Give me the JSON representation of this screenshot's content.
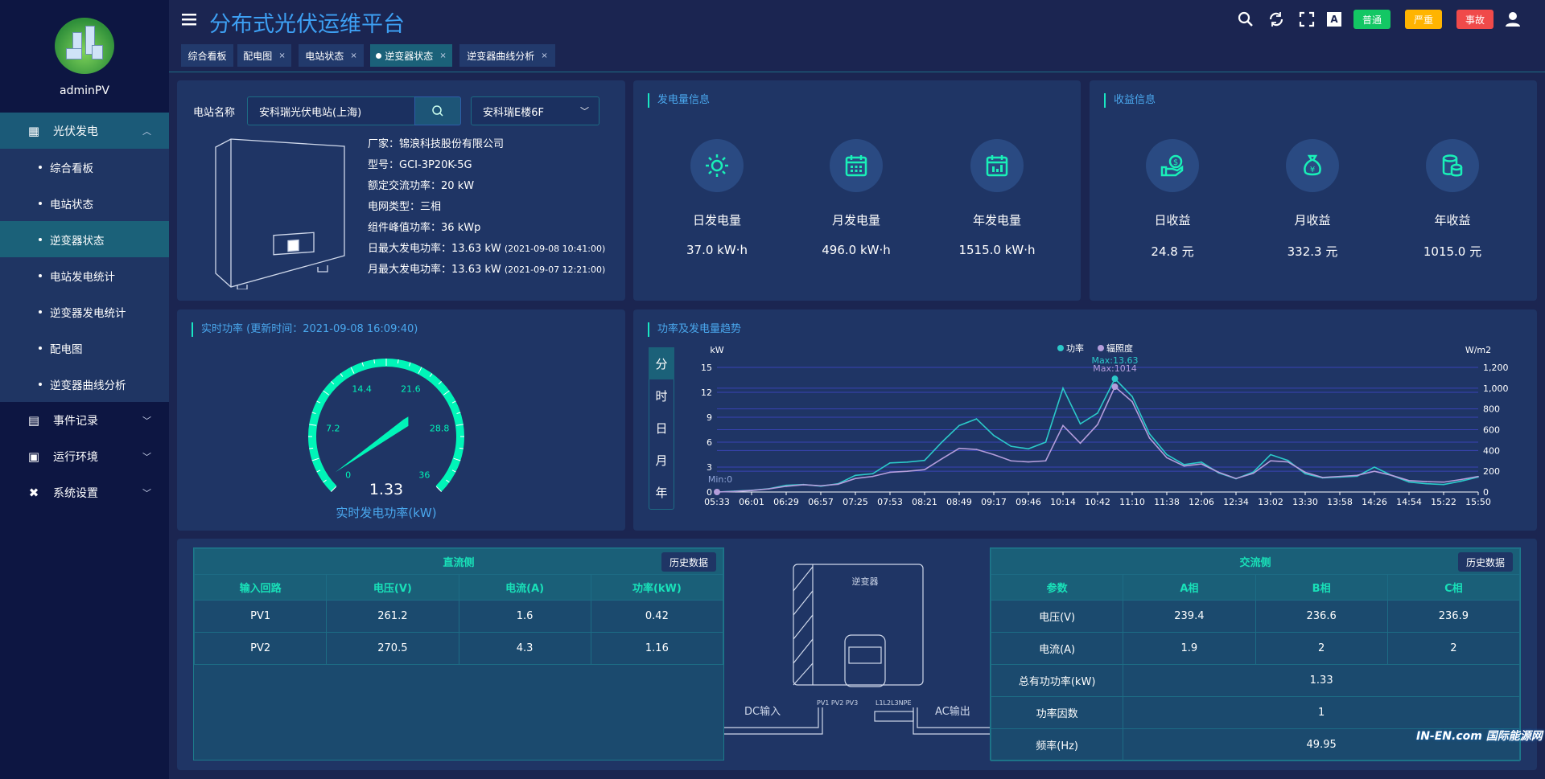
{
  "app": {
    "title": "分布式光伏运维平台",
    "user": "adminPV"
  },
  "header": {
    "icons": [
      "search-icon",
      "refresh-icon",
      "fullscreen-icon",
      "translate-icon",
      "user-icon"
    ],
    "badges": [
      {
        "label": "普通",
        "color": "#13c764"
      },
      {
        "label": "严重",
        "color": "#ffb400"
      },
      {
        "label": "事故",
        "color": "#f04a4a"
      }
    ]
  },
  "tabs": [
    {
      "label": "综合看板",
      "closable": false
    },
    {
      "label": "配电图",
      "closable": true
    },
    {
      "label": "电站状态",
      "closable": true
    },
    {
      "label": "逆变器状态",
      "closable": true,
      "active": true
    },
    {
      "label": "逆变器曲线分析",
      "closable": true
    }
  ],
  "sidebar": {
    "groups": [
      {
        "label": "光伏发电",
        "expanded": true,
        "items": [
          "综合看板",
          "电站状态",
          "逆变器状态",
          "电站发电统计",
          "逆变器发电统计",
          "配电图",
          "逆变器曲线分析"
        ],
        "active": "逆变器状态"
      },
      {
        "label": "事件记录"
      },
      {
        "label": "运行环境"
      },
      {
        "label": "系统设置"
      }
    ]
  },
  "station": {
    "label": "电站名称",
    "name": "安科瑞光伏电站(上海)",
    "device": "安科瑞E楼6F",
    "info": [
      {
        "k": "厂家：",
        "v": "锦浪科技股份有限公司"
      },
      {
        "k": "型号：",
        "v": "GCI-3P20K-5G"
      },
      {
        "k": "额定交流功率：",
        "v": "20 kW"
      },
      {
        "k": "电网类型：",
        "v": "三相"
      },
      {
        "k": "组件峰值功率：",
        "v": "36 kWp"
      },
      {
        "k": "日最大发电功率：",
        "v": "13.63 kW",
        "t": "(2021-09-08 10:41:00)"
      },
      {
        "k": "月最大发电功率：",
        "v": "13.63 kW",
        "t": "(2021-09-07 12:21:00)"
      }
    ]
  },
  "generation": {
    "title": "发电量信息",
    "items": [
      {
        "label": "日发电量",
        "value": "37.0 kW·h",
        "icon": "sun-icon"
      },
      {
        "label": "月发电量",
        "value": "496.0 kW·h",
        "icon": "calendar-icon"
      },
      {
        "label": "年发电量",
        "value": "1515.0 kW·h",
        "icon": "calendar-chart-icon"
      }
    ]
  },
  "income": {
    "title": "收益信息",
    "items": [
      {
        "label": "日收益",
        "value": "24.8 元",
        "icon": "hand-coin-icon"
      },
      {
        "label": "月收益",
        "value": "332.3 元",
        "icon": "money-bag-icon"
      },
      {
        "label": "年收益",
        "value": "1015.0 元",
        "icon": "coin-stack-icon"
      }
    ]
  },
  "realtime": {
    "title": "实时功率 (更新时间：2021-09-08 16:09:40)",
    "value": 1.33,
    "value_text": "1.33",
    "label": "实时发电功率(kW)",
    "min": 0,
    "max": 36,
    "ticks": [
      "0",
      "7.2",
      "14.4",
      "21.6",
      "28.8",
      "36"
    ],
    "color": "#00f5b8"
  },
  "trend": {
    "title": "功率及发电量趋势",
    "periods": [
      "分",
      "时",
      "日",
      "月",
      "年"
    ],
    "active_period": "分"
  },
  "chart_data": {
    "type": "line",
    "ylabel": "kW",
    "ylabel_right": "W/m2",
    "ylim": [
      0,
      15
    ],
    "yticks": [
      0,
      3,
      6,
      9,
      12,
      15
    ],
    "ylim_right": [
      0,
      1200
    ],
    "yticks_right": [
      "0",
      "200",
      "400",
      "600",
      "800",
      "1,000",
      "1,200"
    ],
    "xticks": [
      "05:33",
      "06:01",
      "06:29",
      "06:57",
      "07:25",
      "07:53",
      "08:21",
      "08:49",
      "09:17",
      "09:46",
      "10:14",
      "10:42",
      "11:10",
      "11:38",
      "12:06",
      "12:34",
      "13:02",
      "13:30",
      "13:58",
      "14:26",
      "14:54",
      "15:22",
      "15:50"
    ],
    "x": [
      "05:33",
      "05:47",
      "06:01",
      "06:15",
      "06:29",
      "06:43",
      "06:57",
      "07:11",
      "07:25",
      "07:39",
      "07:53",
      "08:07",
      "08:21",
      "08:35",
      "08:49",
      "09:03",
      "09:17",
      "09:31",
      "09:46",
      "10:00",
      "10:14",
      "10:28",
      "10:42",
      "10:56",
      "11:10",
      "11:24",
      "11:38",
      "11:52",
      "12:06",
      "12:20",
      "12:34",
      "12:48",
      "13:02",
      "13:16",
      "13:30",
      "13:44",
      "13:58",
      "14:12",
      "14:26",
      "14:40",
      "14:54",
      "15:08",
      "15:22",
      "15:36",
      "15:50"
    ],
    "legend_position": "top-center",
    "grid": true,
    "series": [
      {
        "name": "功率",
        "axis": "left",
        "color": "#2bc9c9",
        "values": [
          0,
          0.1,
          0.2,
          0.4,
          0.8,
          0.9,
          0.7,
          1.0,
          2.0,
          2.2,
          3.5,
          3.6,
          3.8,
          6.0,
          8.0,
          8.8,
          6.8,
          5.5,
          5.2,
          6.0,
          12.5,
          8.2,
          9.5,
          13.63,
          11.5,
          7.0,
          4.5,
          3.3,
          3.6,
          2.3,
          1.6,
          2.4,
          4.5,
          3.8,
          2.2,
          1.7,
          1.8,
          1.9,
          3.0,
          2.0,
          1.2,
          1.0,
          0.9,
          1.3,
          1.8
        ],
        "max_label": "Max:13.63"
      },
      {
        "name": "辐照度",
        "axis": "right",
        "color": "#b49ddb",
        "values": [
          0,
          5,
          15,
          30,
          55,
          70,
          60,
          75,
          130,
          150,
          190,
          200,
          215,
          320,
          420,
          410,
          360,
          300,
          290,
          300,
          640,
          470,
          650,
          1014,
          870,
          520,
          330,
          250,
          270,
          190,
          130,
          180,
          300,
          290,
          190,
          140,
          150,
          160,
          200,
          160,
          110,
          100,
          95,
          120,
          150
        ],
        "max_label": "Max:1014"
      }
    ],
    "min_label": "Min:0"
  },
  "dc": {
    "title": "直流侧",
    "history": "历史数据",
    "headers": [
      "输入回路",
      "电压(V)",
      "电流(A)",
      "功率(kW)"
    ],
    "rows": [
      [
        "PV1",
        "261.2",
        "1.6",
        "0.42"
      ],
      [
        "PV2",
        "270.5",
        "4.3",
        "1.16"
      ]
    ]
  },
  "ac": {
    "title": "交流侧",
    "history": "历史数据",
    "headers": [
      "参数",
      "A相",
      "B相",
      "C相"
    ],
    "rows": [
      [
        "电压(V)",
        "239.4",
        "236.6",
        "236.9"
      ],
      [
        "电流(A)",
        "1.9",
        "2",
        "2"
      ]
    ],
    "merged_rows": [
      [
        "总有功功率(kW)",
        "1.33"
      ],
      [
        "功率因数",
        "1"
      ],
      [
        "频率(Hz)",
        "49.95"
      ]
    ]
  },
  "diagram": {
    "title": "逆变器",
    "dc_label": "DC输入",
    "ac_label": "AC输出",
    "dc_ports": "PV1 PV2 PV3",
    "ac_ports": "L1L2L3NPE"
  },
  "watermark": {
    "text": "IN-EN.com 国际能源网"
  }
}
